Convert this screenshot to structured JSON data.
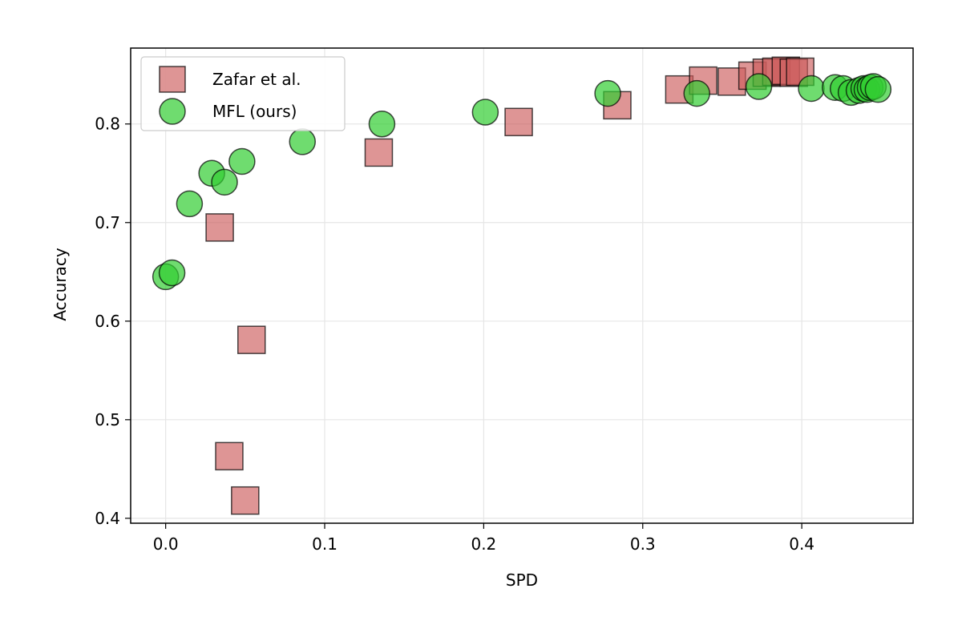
{
  "chart_data": {
    "type": "scatter",
    "title": "",
    "xlabel": "SPD",
    "ylabel": "Accuracy",
    "xlim": [
      -0.022,
      0.47
    ],
    "ylim": [
      0.395,
      0.877
    ],
    "xticks": [
      0.0,
      0.1,
      0.2,
      0.3,
      0.4
    ],
    "xtick_labels": [
      "0.0",
      "0.1",
      "0.2",
      "0.3",
      "0.4"
    ],
    "yticks": [
      0.4,
      0.5,
      0.6,
      0.7,
      0.8
    ],
    "ytick_labels": [
      "0.4",
      "0.5",
      "0.6",
      "0.7",
      "0.8"
    ],
    "grid": true,
    "legend_position": "top-left",
    "series": [
      {
        "name": "Zafar et al.",
        "marker": "square",
        "color": "#cd5c5c",
        "points": [
          {
            "x": 0.05,
            "y": 0.418
          },
          {
            "x": 0.04,
            "y": 0.463
          },
          {
            "x": 0.054,
            "y": 0.581
          },
          {
            "x": 0.034,
            "y": 0.695
          },
          {
            "x": 0.134,
            "y": 0.771
          },
          {
            "x": 0.222,
            "y": 0.802
          },
          {
            "x": 0.284,
            "y": 0.819
          },
          {
            "x": 0.323,
            "y": 0.835
          },
          {
            "x": 0.338,
            "y": 0.844
          },
          {
            "x": 0.356,
            "y": 0.843
          },
          {
            "x": 0.369,
            "y": 0.849
          },
          {
            "x": 0.378,
            "y": 0.852
          },
          {
            "x": 0.384,
            "y": 0.853
          },
          {
            "x": 0.39,
            "y": 0.854
          },
          {
            "x": 0.395,
            "y": 0.852
          },
          {
            "x": 0.399,
            "y": 0.853
          }
        ]
      },
      {
        "name": "MFL (ours)",
        "marker": "circle",
        "color": "#32cd32",
        "points": [
          {
            "x": 0.0,
            "y": 0.645
          },
          {
            "x": 0.004,
            "y": 0.649
          },
          {
            "x": 0.015,
            "y": 0.719
          },
          {
            "x": 0.029,
            "y": 0.75
          },
          {
            "x": 0.037,
            "y": 0.741
          },
          {
            "x": 0.048,
            "y": 0.762
          },
          {
            "x": 0.086,
            "y": 0.782
          },
          {
            "x": 0.136,
            "y": 0.8
          },
          {
            "x": 0.201,
            "y": 0.812
          },
          {
            "x": 0.278,
            "y": 0.831
          },
          {
            "x": 0.334,
            "y": 0.831
          },
          {
            "x": 0.373,
            "y": 0.838
          },
          {
            "x": 0.406,
            "y": 0.836
          },
          {
            "x": 0.421,
            "y": 0.837
          },
          {
            "x": 0.426,
            "y": 0.836
          },
          {
            "x": 0.431,
            "y": 0.832
          },
          {
            "x": 0.436,
            "y": 0.834
          },
          {
            "x": 0.439,
            "y": 0.836
          },
          {
            "x": 0.441,
            "y": 0.835
          },
          {
            "x": 0.443,
            "y": 0.837
          },
          {
            "x": 0.445,
            "y": 0.838
          },
          {
            "x": 0.448,
            "y": 0.835
          }
        ]
      }
    ]
  }
}
